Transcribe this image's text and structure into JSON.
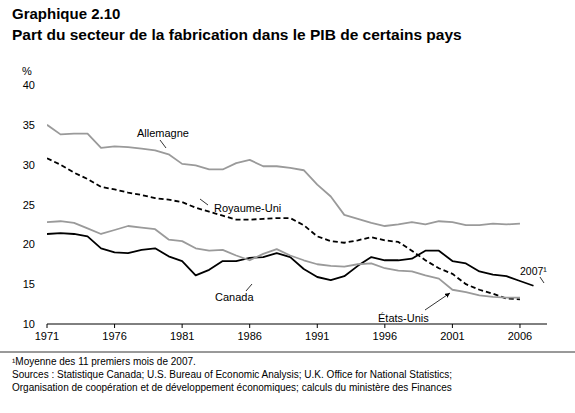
{
  "chart_data": {
    "type": "line",
    "title": "Graphique 2.10",
    "subtitle": "Part du secteur de la fabrication dans le PIB de certains pays",
    "y_label": "%",
    "x": [
      1971,
      1972,
      1973,
      1974,
      1975,
      1976,
      1977,
      1978,
      1979,
      1980,
      1981,
      1982,
      1983,
      1984,
      1985,
      1986,
      1987,
      1988,
      1989,
      1990,
      1991,
      1992,
      1993,
      1994,
      1995,
      1996,
      1997,
      1998,
      1999,
      2000,
      2001,
      2002,
      2003,
      2004,
      2005,
      2006,
      2007
    ],
    "series": [
      {
        "name": "Allemagne",
        "color": "#9a9a9a",
        "line_style": "solid",
        "values": [
          35.0,
          33.8,
          33.9,
          33.9,
          32.1,
          32.3,
          32.2,
          32.0,
          31.8,
          31.3,
          30.1,
          29.9,
          29.4,
          29.4,
          30.2,
          30.6,
          29.8,
          29.8,
          29.6,
          29.3,
          27.5,
          26.0,
          23.7,
          23.2,
          22.7,
          22.3,
          22.5,
          22.8,
          22.5,
          22.9,
          22.8,
          22.4,
          22.4,
          22.6,
          22.5,
          22.6,
          null
        ]
      },
      {
        "name": "Royaume-Uni",
        "color": "#000000",
        "line_style": "dashed",
        "values": [
          30.8,
          30.0,
          29.0,
          28.2,
          27.2,
          26.9,
          26.5,
          26.2,
          25.8,
          25.6,
          25.3,
          24.6,
          24.1,
          23.6,
          23.1,
          23.1,
          23.2,
          23.3,
          23.3,
          22.4,
          21.0,
          20.4,
          20.2,
          20.5,
          20.9,
          20.5,
          20.3,
          19.2,
          18.0,
          17.0,
          16.3,
          15.0,
          14.3,
          13.8,
          13.2,
          13.1,
          null
        ]
      },
      {
        "name": "Canada",
        "color": "#000000",
        "line_style": "solid",
        "values": [
          21.3,
          21.4,
          21.3,
          21.0,
          19.5,
          19.0,
          18.9,
          19.3,
          19.5,
          18.5,
          17.9,
          16.1,
          16.8,
          17.9,
          17.9,
          18.3,
          18.4,
          18.9,
          18.4,
          16.9,
          15.9,
          15.5,
          16.0,
          17.3,
          18.4,
          18.0,
          18.0,
          18.2,
          19.2,
          19.2,
          17.9,
          17.6,
          16.6,
          16.2,
          16.0,
          15.4,
          14.8
        ]
      },
      {
        "name": "États-Unis",
        "color": "#9a9a9a",
        "line_style": "solid",
        "values": [
          22.8,
          22.9,
          22.7,
          22.0,
          21.3,
          21.8,
          22.3,
          22.1,
          21.9,
          20.6,
          20.4,
          19.5,
          19.2,
          19.3,
          18.6,
          18.0,
          18.8,
          19.4,
          18.6,
          18.0,
          17.5,
          17.3,
          17.2,
          17.5,
          17.6,
          17.0,
          16.7,
          16.6,
          16.1,
          15.7,
          14.3,
          14.0,
          13.6,
          13.4,
          13.3,
          13.3,
          null
        ]
      }
    ],
    "annotations": [
      "2007¹"
    ],
    "notes": [
      "¹Moyenne des 11 premiers mois de 2007.",
      "Sources : Statistique Canada; U.S. Bureau of Economic Analysis; U.K. Office for National Statistics;",
      "Organisation de coopération et de développement économiques; calculs du ministère des Finances"
    ],
    "xlim": [
      1971,
      2008
    ],
    "xticks": [
      1971,
      1976,
      1981,
      1986,
      1991,
      1996,
      2001,
      2006
    ],
    "ylim": [
      10,
      40
    ],
    "yticks": [
      10,
      15,
      20,
      25,
      30,
      35,
      40
    ],
    "grid": false
  }
}
